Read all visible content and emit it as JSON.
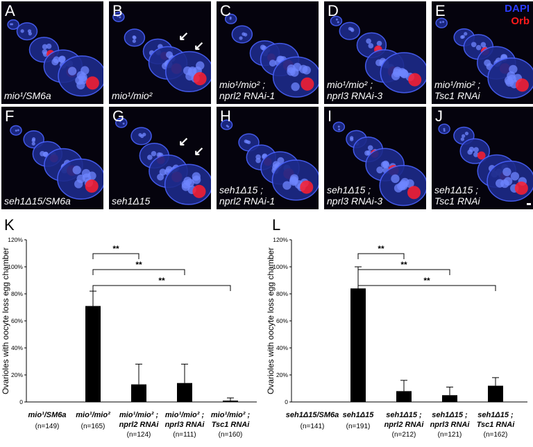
{
  "figure": {
    "panels": [
      {
        "letter": "A",
        "genotype": "mio¹/SM6a",
        "shows_legend": false,
        "arrows": 0
      },
      {
        "letter": "B",
        "genotype": "mio¹/mio²",
        "shows_legend": false,
        "arrows": 2
      },
      {
        "letter": "C",
        "genotype": "mio¹/mio² ;\nnprl2 RNAi-1",
        "shows_legend": false,
        "arrows": 0
      },
      {
        "letter": "D",
        "genotype": "mio¹/mio² ;\nnprl3 RNAi-3",
        "shows_legend": false,
        "arrows": 0
      },
      {
        "letter": "E",
        "genotype": "mio¹/mio² ;\nTsc1 RNAi",
        "shows_legend": true,
        "arrows": 0
      },
      {
        "letter": "F",
        "genotype": "seh1Δ15/SM6a",
        "shows_legend": false,
        "arrows": 0
      },
      {
        "letter": "G",
        "genotype": "seh1Δ15",
        "shows_legend": false,
        "arrows": 2
      },
      {
        "letter": "H",
        "genotype": "seh1Δ15 ;\nnprl2 RNAi-1",
        "shows_legend": false,
        "arrows": 0
      },
      {
        "letter": "I",
        "genotype": "seh1Δ15 ;\nnprl3 RNAi-3",
        "shows_legend": false,
        "arrows": 0
      },
      {
        "letter": "J",
        "genotype": "seh1Δ15 ;\nTsc1 RNAi",
        "shows_legend": false,
        "arrows": 0
      }
    ],
    "legend": {
      "dapi": "DAPI",
      "orb": "Orb",
      "dapi_color": "#2a3cff",
      "orb_color": "#ff1a1a"
    },
    "chart_letters": {
      "left": "K",
      "right": "L"
    }
  },
  "chart_data": [
    {
      "type": "bar",
      "panel": "K",
      "ylabel": "Ovarioles with oocyte loss egg chamber",
      "ylim": [
        0,
        120
      ],
      "yticks": [
        "0",
        "20%",
        "40%",
        "60%",
        "80%",
        "100%",
        "120%"
      ],
      "categories": [
        {
          "line1": "mio¹/SM6a",
          "line2": "",
          "n": "(n=149)"
        },
        {
          "line1": "mio¹/mio²",
          "line2": "",
          "n": "(n=165)"
        },
        {
          "line1": "mio¹/mio² ;",
          "line2": "nprl2 RNAi",
          "n": "(n=124)"
        },
        {
          "line1": "mio¹/mio² ;",
          "line2": "nprl3 RNAi",
          "n": "(n=111)"
        },
        {
          "line1": "mio¹/mio² ;",
          "line2": "Tsc1 RNAi",
          "n": "(n=160)"
        }
      ],
      "values": [
        0,
        71,
        13,
        14,
        1
      ],
      "errors": [
        0,
        11,
        15,
        14,
        2
      ],
      "significance": [
        {
          "from": 1,
          "to": 2,
          "label": "**"
        },
        {
          "from": 1,
          "to": 3,
          "label": "**"
        },
        {
          "from": 1,
          "to": 4,
          "label": "**"
        }
      ]
    },
    {
      "type": "bar",
      "panel": "L",
      "ylabel": "Ovarioles with oocyte loss egg chamber",
      "ylim": [
        0,
        120
      ],
      "yticks": [
        "0",
        "20%",
        "40%",
        "60%",
        "80%",
        "100%",
        "120%"
      ],
      "categories": [
        {
          "line1": "seh1Δ15/SM6a",
          "line2": "",
          "n": "(n=141)"
        },
        {
          "line1": "seh1Δ15",
          "line2": "",
          "n": "(n=191)"
        },
        {
          "line1": "seh1Δ15 ;",
          "line2": "nprl2 RNAi",
          "n": "(n=212)"
        },
        {
          "line1": "seh1Δ15 ;",
          "line2": "nprl3 RNAi",
          "n": "(n=121)"
        },
        {
          "line1": "seh1Δ15 ;",
          "line2": "Tsc1 RNAi",
          "n": "(n=162)"
        }
      ],
      "values": [
        0,
        84,
        8,
        5,
        12
      ],
      "errors": [
        0,
        16,
        8,
        6,
        6
      ],
      "significance": [
        {
          "from": 1,
          "to": 2,
          "label": "**"
        },
        {
          "from": 1,
          "to": 3,
          "label": "**"
        },
        {
          "from": 1,
          "to": 4,
          "label": "**"
        }
      ]
    }
  ]
}
